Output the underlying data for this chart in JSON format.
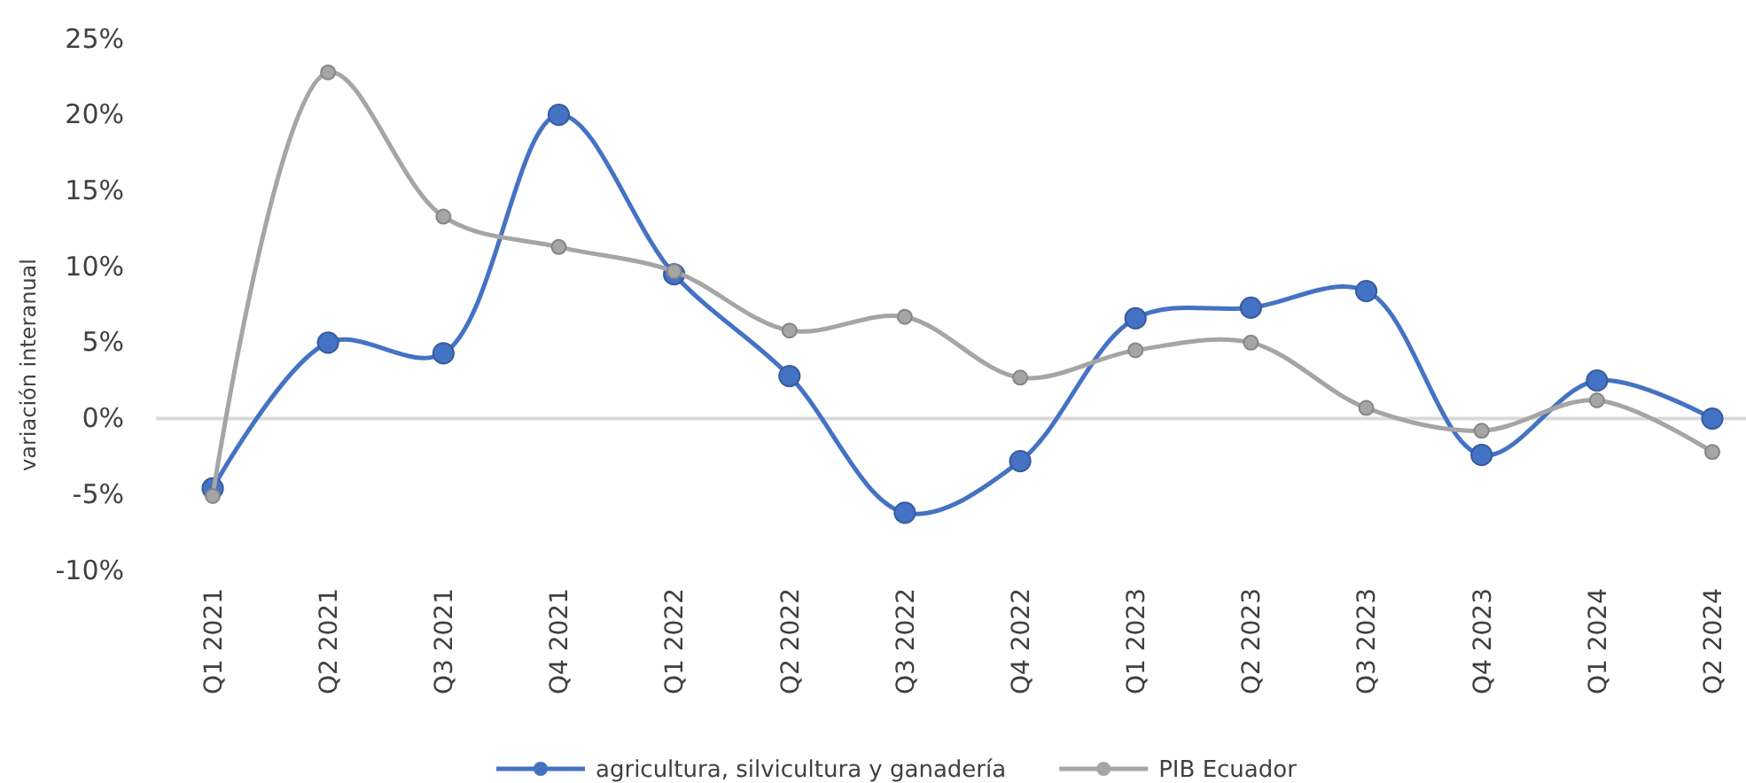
{
  "chart_data": {
    "type": "line",
    "ylabel": "variación interanual",
    "categories": [
      "Q1 2021",
      "Q2 2021",
      "Q3 2021",
      "Q4 2021",
      "Q1 2022",
      "Q2 2022",
      "Q3 2022",
      "Q4 2022",
      "Q1 2023",
      "Q2 2023",
      "Q3 2023",
      "Q4 2023",
      "Q1 2024",
      "Q2 2024"
    ],
    "series": [
      {
        "name": "agricultura, silvicultura y ganadería",
        "color": "#4472c4",
        "values": [
          -4.6,
          5.0,
          4.3,
          20.0,
          9.5,
          2.8,
          -6.2,
          -2.8,
          6.6,
          7.3,
          8.4,
          -2.4,
          2.5,
          0.0
        ]
      },
      {
        "name": "PIB Ecuador",
        "color": "#a5a5a5",
        "values": [
          -5.1,
          22.8,
          13.3,
          11.3,
          9.7,
          5.8,
          6.7,
          2.7,
          4.5,
          5.0,
          0.7,
          -0.8,
          1.2,
          -2.2
        ]
      }
    ],
    "ylim": [
      -10,
      25
    ],
    "yticks": [
      {
        "value": -10,
        "label": "-10%"
      },
      {
        "value": -5,
        "label": "-5%"
      },
      {
        "value": 0,
        "label": "0%"
      },
      {
        "value": 5,
        "label": "5%"
      },
      {
        "value": 10,
        "label": "10%"
      },
      {
        "value": 15,
        "label": "15%"
      },
      {
        "value": 20,
        "label": "20%"
      },
      {
        "value": 25,
        "label": "25%"
      }
    ],
    "ref_lines": [
      {
        "axis": "y",
        "value": 0,
        "color": "#d9d9d9"
      }
    ],
    "grid": false,
    "legend": "bottom",
    "marker": "circle",
    "line_style": "solid"
  }
}
